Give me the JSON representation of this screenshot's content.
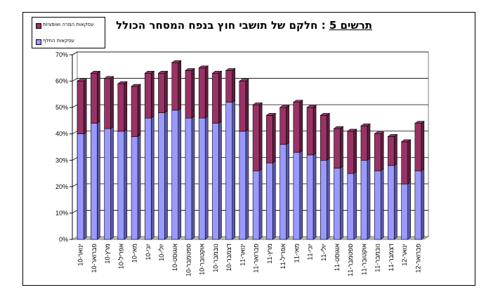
{
  "title": {
    "prefix": "תרשים 5",
    "text": ": חלקם של תושבי חוץ בנפח המסחר הכולל"
  },
  "colors": {
    "spot": "#9999ff",
    "spot_dark": "#5a5aa8",
    "forward": "#993366",
    "forward_dark": "#5c1f3d",
    "floor": "#c0c0c0"
  },
  "chart_data": {
    "type": "bar",
    "stacked": true,
    "ylim": [
      0,
      70
    ],
    "y_ticks": [
      "0%",
      "10%",
      "20%",
      "30%",
      "40%",
      "50%",
      "60%",
      "70%"
    ],
    "grid": true,
    "legend_position": "top-left",
    "categories": [
      "ינו-10",
      "פבו-10",
      "מרץ-10",
      "אפר-10",
      "מאי-10",
      "יונ-10",
      "יול-10",
      "אוג-10",
      "ספט-10",
      "אוק-10",
      "נוב-10",
      "דצמ-10",
      "ינו-11",
      "פבו-11",
      "מרץ-11",
      "אפר-11",
      "מאי-11",
      "יונ-11",
      "יול-11",
      "אוג-11",
      "ספט-11",
      "אוק-11",
      "נוב-11",
      "דצמ-11",
      "ינו-12",
      "פבו-12"
    ],
    "category_labels": [
      "ינואר-10",
      "פברואר-10",
      "מרץ-10",
      "אפריל-10",
      "מאי-10",
      "יוני-10",
      "יולי-10",
      "אוגוסט-10",
      "ספטמבר-10",
      "אוקטובר-10",
      "נובמבר-10",
      "דצמבר-10",
      "ינואר-11",
      "פברואר-11",
      "מרץ-11",
      "אפריל-11",
      "מאי-11",
      "יוני-11",
      "יולי-11",
      "אוגוסט-11",
      "ספטמבר-11",
      "אוקטובר-11",
      "נובמבר-11",
      "דצמבר-11",
      "ינואר-12",
      "פברואר-12"
    ],
    "series": [
      {
        "name": "עסקאות החלף",
        "values": [
          40,
          44,
          42,
          41,
          39,
          46,
          48,
          49,
          46,
          46,
          44,
          52,
          41,
          26,
          29,
          36,
          33,
          32,
          30,
          27,
          25,
          30,
          26,
          28,
          21,
          26
        ]
      },
      {
        "name": "עסקאות המרה ואופציות",
        "values": [
          20,
          19,
          19,
          18,
          19,
          17,
          15,
          18,
          18,
          19,
          19,
          12,
          19,
          25,
          18,
          14,
          19,
          18,
          17,
          15,
          16,
          13,
          14,
          11,
          16,
          18
        ]
      }
    ]
  }
}
